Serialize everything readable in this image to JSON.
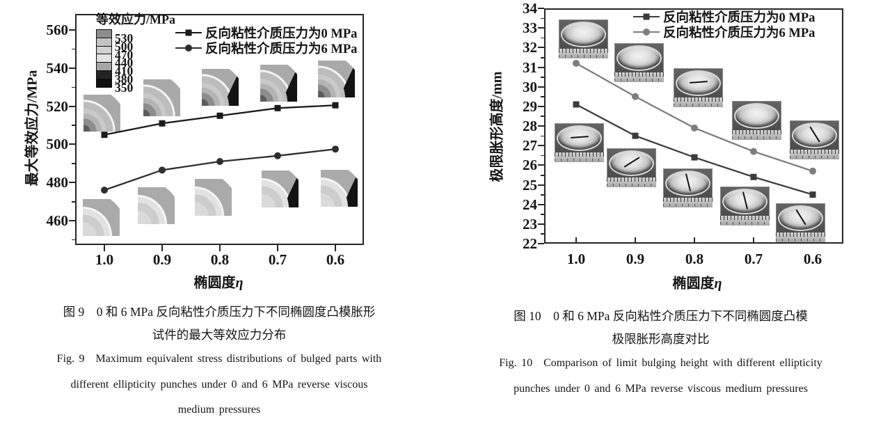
{
  "figures": [
    {
      "id": "fig9",
      "caption_cn1": "图 9　0 和 6 MPa 反向粘性介质压力下不同椭圆度凸模胀形",
      "caption_cn2": "试件的最大等效应力分布",
      "caption_en1": "Fig. 9　Maximum equivalent stress distributions of bulged parts with",
      "caption_en2": "different ellipticity punches under 0 and 6 MPa reverse viscous",
      "caption_en3": "medium pressures"
    },
    {
      "id": "fig10",
      "caption_cn1": "图 10　0 和 6 MPa 反向粘性介质压力下不同椭圆度凸模",
      "caption_cn2": "极限胀形高度对比",
      "caption_en1": "Fig. 10　Comparison of limit bulging height with different ellipticity",
      "caption_en2": "punches under 0 and 6 MPa reverse viscous medium pressures"
    }
  ],
  "chart_data": [
    {
      "type": "line",
      "title": "图 9 最大等效应力分布",
      "x": [
        1.0,
        0.9,
        0.8,
        0.7,
        0.6
      ],
      "xticklabels": [
        "1.0",
        "0.9",
        "0.8",
        "0.7",
        "0.6"
      ],
      "x_axis_reversed": true,
      "xlabel": "椭圆度η",
      "xlabel_cn": "椭圆度",
      "xlabel_sym": "η",
      "ylabel": "最大等效应力/MPa",
      "ylim": [
        447,
        568
      ],
      "yticks": [
        460,
        480,
        500,
        520,
        540,
        560
      ],
      "grid": false,
      "legend_position": "inside-top-right",
      "series": [
        {
          "name": "反向粘性介质压力为0 MPa",
          "marker": "square",
          "color": "#1b1b1b",
          "values": [
            505,
            511,
            515,
            519,
            520.5
          ]
        },
        {
          "name": "反向粘性介质压力为6 MPa",
          "marker": "circle",
          "color": "#2e2e2e",
          "values": [
            476,
            486.5,
            491,
            494,
            497.5
          ]
        }
      ],
      "colorbar": {
        "title": "等效应力/MPa",
        "labels": [
          "530",
          "500",
          "470",
          "440",
          "410",
          "380",
          "350"
        ],
        "colors": [
          "#8d8d8d",
          "#c3c3c3",
          "#d3d3d3",
          "#e3e3e3",
          "#a5a5a5",
          "#242424",
          "#0f0f0f"
        ]
      },
      "insets": {
        "description": "quarter-section equivalent-stress contour images at each ellipticity",
        "top_row_dark_edge": [
          false,
          false,
          true,
          true,
          true
        ],
        "bottom_row_dark_edge": [
          false,
          false,
          false,
          true,
          true
        ]
      }
    },
    {
      "type": "line",
      "title": "图 10 极限胀形高度对比",
      "x": [
        1.0,
        0.9,
        0.8,
        0.7,
        0.6
      ],
      "xticklabels": [
        "1.0",
        "0.9",
        "0.8",
        "0.7",
        "0.6"
      ],
      "x_axis_reversed": true,
      "xlabel": "椭圆度η",
      "xlabel_cn": "椭圆度",
      "xlabel_sym": "η",
      "ylabel": "极限胀形高度/mm",
      "ylim": [
        22,
        34
      ],
      "yticks": [
        34,
        33,
        32,
        31,
        30,
        29,
        28,
        27,
        26,
        25,
        24,
        23,
        22
      ],
      "grid": false,
      "legend_position": "inside-top-right",
      "series": [
        {
          "name": "反向粘性介质压力为0 MPa",
          "marker": "square",
          "color": "#3c3c3c",
          "values": [
            29.1,
            27.5,
            26.4,
            25.4,
            24.5
          ]
        },
        {
          "name": "反向粘性介质压力为6 MPa",
          "marker": "circle",
          "color": "#7e7e7e",
          "values": [
            31.2,
            29.5,
            27.9,
            26.7,
            25.7
          ]
        }
      ],
      "photos": {
        "description": "bulged specimen photographs with ruler strip at each ellipticity",
        "upper_row_series": "反向粘性介质压力为6 MPa",
        "lower_row_series": "反向粘性介质压力为0 MPa",
        "upper_row_cracks": [
          null,
          null,
          "h",
          null,
          "s"
        ],
        "lower_row_cracks": [
          "h",
          "d",
          "v",
          "v",
          "s"
        ]
      }
    }
  ]
}
